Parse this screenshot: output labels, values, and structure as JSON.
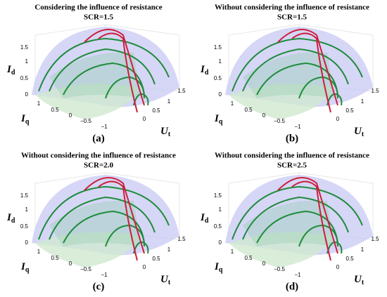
{
  "panels": [
    {
      "title": "Considering the influence of resistance",
      "subtitle": "SCR=1.5",
      "label": "(a)"
    },
    {
      "title": "Without considering the influence of resistance",
      "subtitle": "SCR=1.5",
      "label": "(b)"
    },
    {
      "title": "Without considering the influence of resistance",
      "subtitle": "SCR=2.0",
      "label": "(c)"
    },
    {
      "title": "Without considering the influence of resistance",
      "subtitle": "SCR=2.5",
      "label": "(d)"
    }
  ],
  "axes": {
    "id": {
      "symbol": "I",
      "subscript": "d",
      "ticks": [
        "0",
        "0.5",
        "1",
        "1.5"
      ]
    },
    "iq": {
      "symbol": "I",
      "subscript": "q",
      "ticks": [
        "1",
        "0.5",
        "0",
        "−0.5",
        "−1"
      ]
    },
    "ut": {
      "symbol": "U",
      "subscript": "t",
      "ticks": [
        "0",
        "0.5",
        "1",
        "1.5"
      ]
    }
  }
}
